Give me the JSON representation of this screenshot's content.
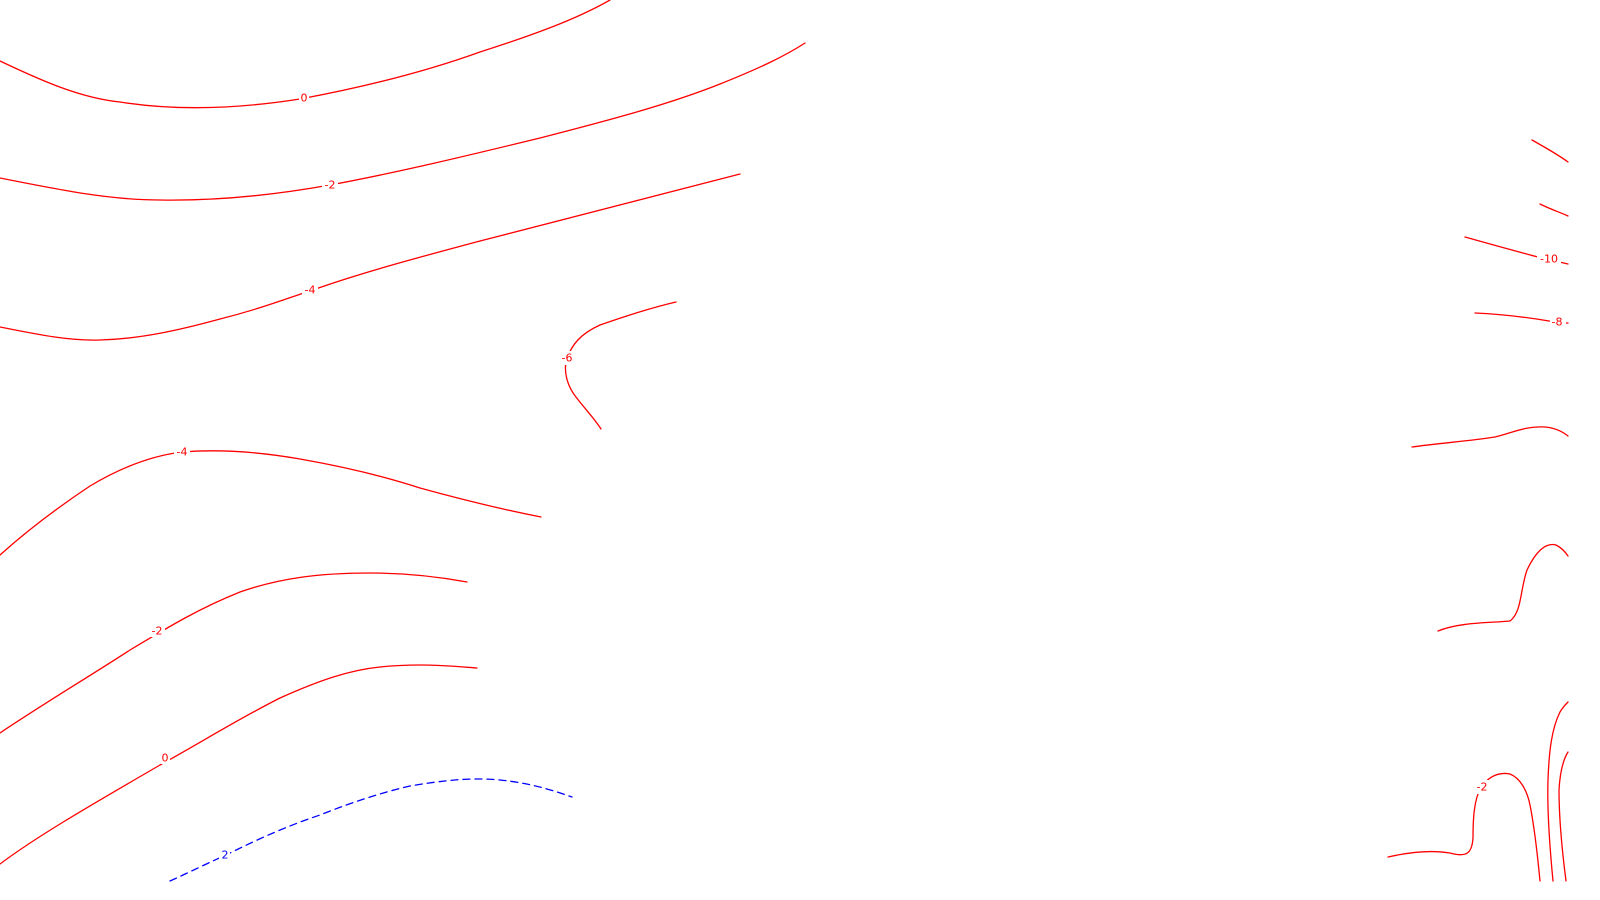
{
  "contour_labels": {
    "top_0": "0",
    "top_m2": "-2",
    "top_m4": "-4",
    "mid_m6": "-6",
    "left_m4": "-4",
    "left_m2": "-2",
    "left_0": "0",
    "bottom_pos2": "2",
    "right_m10": "-10",
    "right_m8": "-8",
    "right_m2": "-2"
  },
  "colors": {
    "background": "#ffffff",
    "negative_contour": "#ff0000",
    "positive_contour": "#0000ff"
  },
  "styles": {
    "negative_contour": "solid",
    "positive_contour": "dashed"
  }
}
